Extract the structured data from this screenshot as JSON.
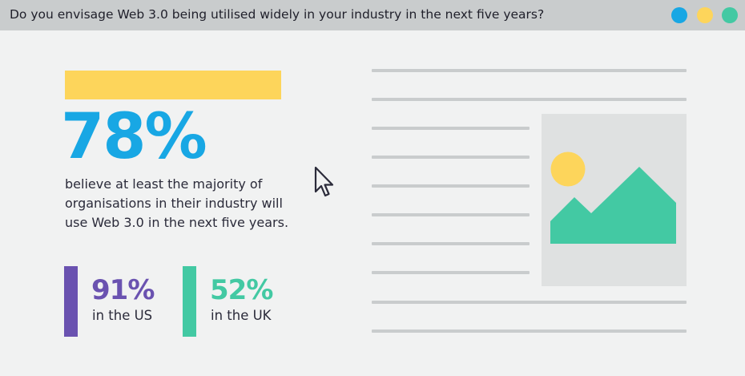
{
  "window": {
    "title": "Do you envisage Web 3.0 being utilised widely in your industry in the next five years?"
  },
  "stat": {
    "value": "78%",
    "description": "believe at least the majority of organisations in their industry will use Web 3.0 in the next five years."
  },
  "breakdown": [
    {
      "value": "91%",
      "label": "in the US",
      "color": "#6a52b0"
    },
    {
      "value": "52%",
      "label": "in the UK",
      "color": "#43c9a3"
    }
  ],
  "colors": {
    "titlebar": "#c9cccd",
    "background": "#f1f2f2",
    "accent_blue": "#18a7e4",
    "accent_yellow": "#fdd55b",
    "accent_green": "#43c9a3",
    "accent_purple": "#6a52b0"
  },
  "icons": {
    "window_controls": [
      "blue-dot-icon",
      "yellow-dot-icon",
      "green-dot-icon"
    ],
    "cursor": "mouse-pointer-icon",
    "image_placeholder": "landscape-image-icon"
  }
}
